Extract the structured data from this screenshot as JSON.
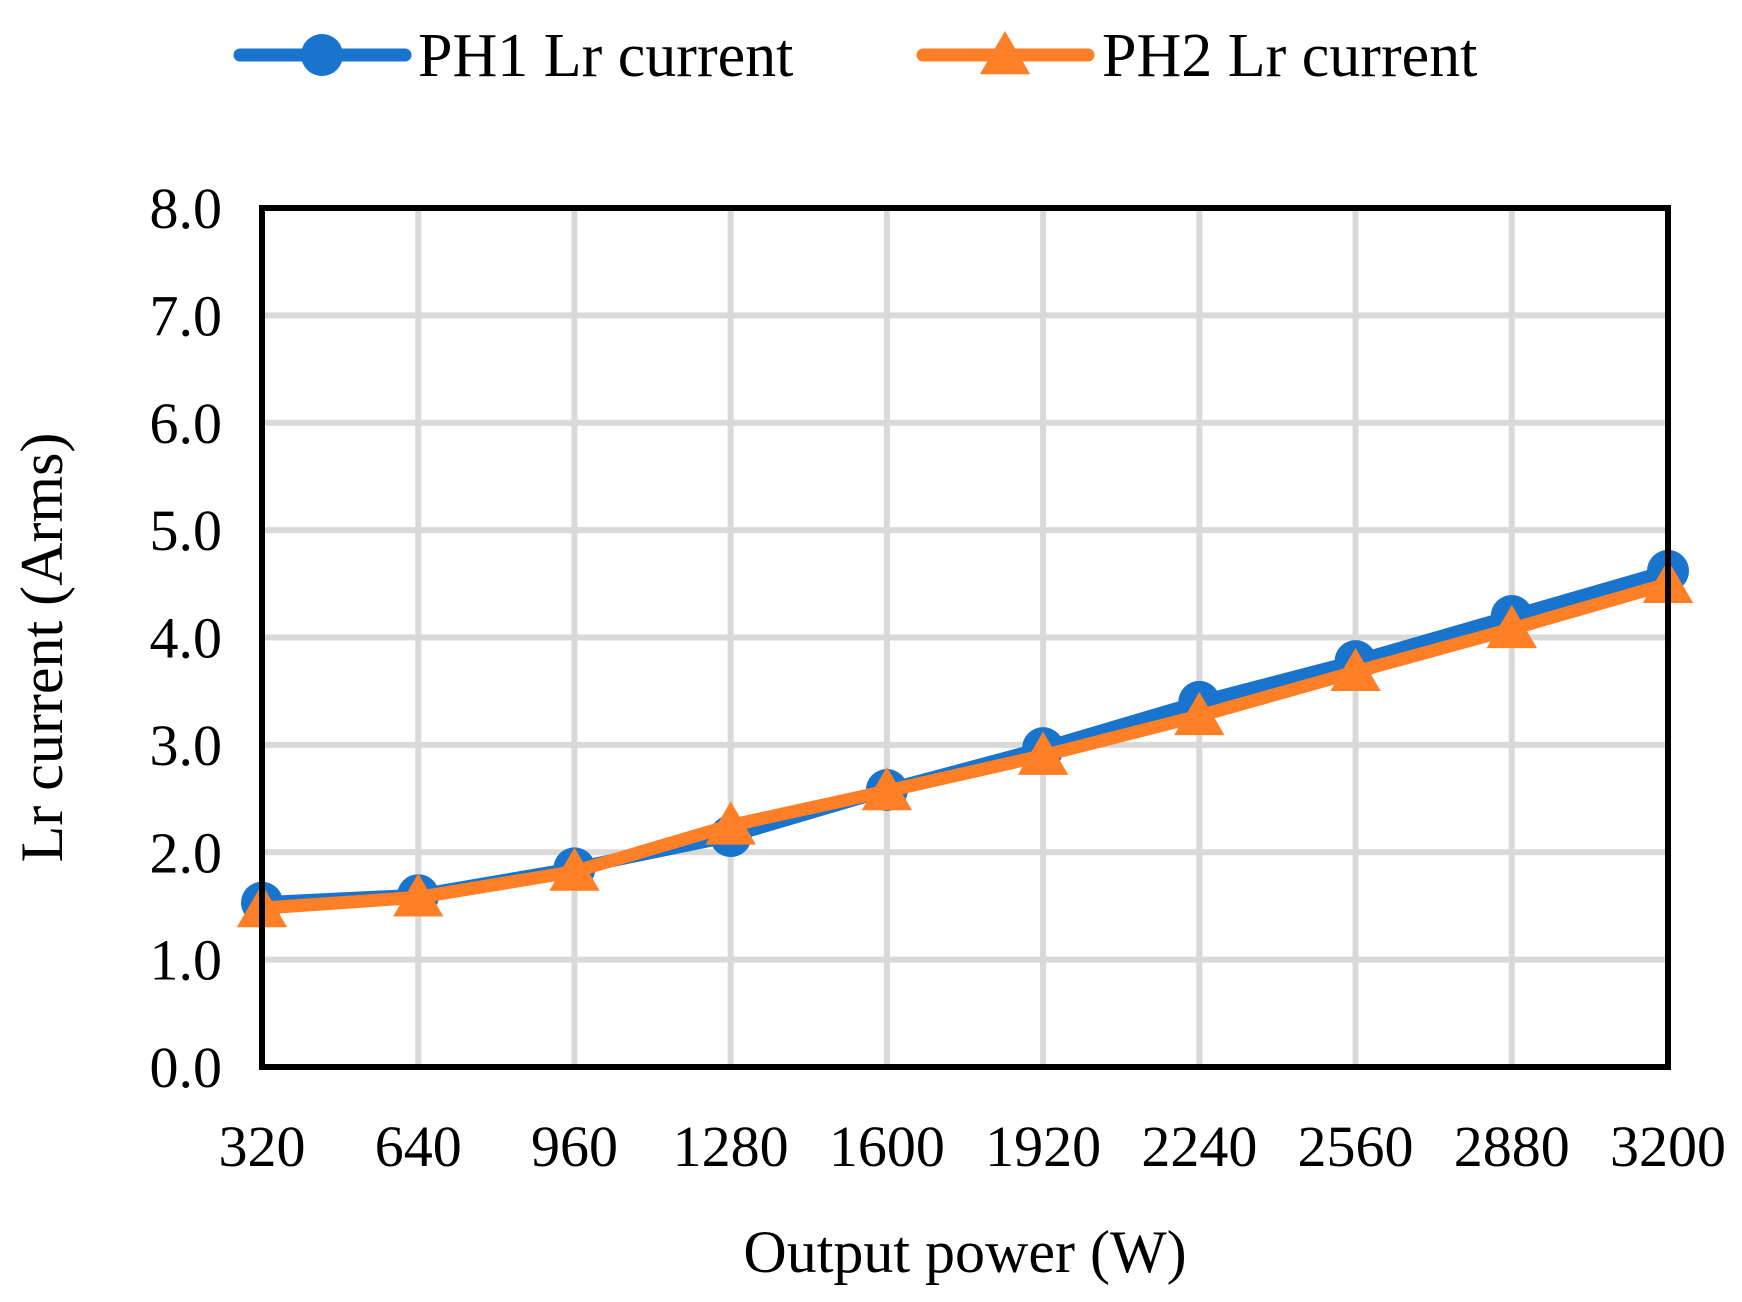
{
  "chart_data": {
    "type": "line",
    "title": "",
    "xlabel": "Output power (W)",
    "ylabel": "Lr current (Arms)",
    "categories": [
      "320",
      "640",
      "960",
      "1280",
      "1600",
      "1920",
      "2240",
      "2560",
      "2880",
      "3200"
    ],
    "ylim": [
      0,
      8
    ],
    "yticks": [
      "0.0",
      "1.0",
      "2.0",
      "3.0",
      "4.0",
      "5.0",
      "6.0",
      "7.0",
      "8.0"
    ],
    "grid": true,
    "legend_position": "top-center",
    "series": [
      {
        "name": "PH1 Lr current",
        "marker": "circle",
        "color": "#1874CD",
        "values": [
          1.53,
          1.6,
          1.85,
          2.15,
          2.58,
          2.97,
          3.4,
          3.78,
          4.2,
          4.62
        ]
      },
      {
        "name": "PH2 Lr current",
        "marker": "triangle",
        "color": "#FF7F27",
        "values": [
          1.48,
          1.58,
          1.82,
          2.25,
          2.57,
          2.9,
          3.27,
          3.68,
          4.08,
          4.5
        ]
      }
    ]
  }
}
